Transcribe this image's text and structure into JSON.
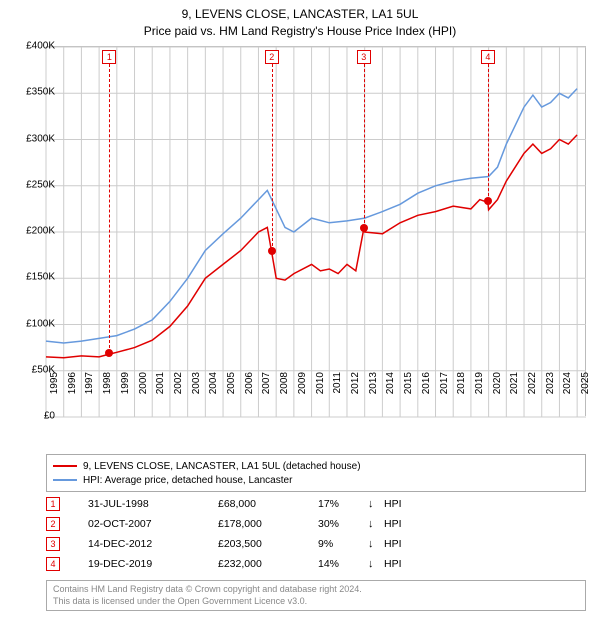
{
  "title_line1": "9, LEVENS CLOSE, LANCASTER, LA1 5UL",
  "title_line2": "Price paid vs. HM Land Registry's House Price Index (HPI)",
  "chart": {
    "type": "line",
    "background_color": "#ffffff",
    "grid_color": "#cccccc",
    "ylim": [
      0,
      400000
    ],
    "ytick_step": 50000,
    "yticks": [
      "£0",
      "£50K",
      "£100K",
      "£150K",
      "£200K",
      "£250K",
      "£300K",
      "£350K",
      "£400K"
    ],
    "xlim": [
      1995,
      2025.5
    ],
    "xticks": [
      1995,
      1996,
      1997,
      1998,
      1999,
      2000,
      2001,
      2002,
      2003,
      2004,
      2005,
      2006,
      2007,
      2008,
      2009,
      2010,
      2011,
      2012,
      2013,
      2014,
      2015,
      2016,
      2017,
      2018,
      2019,
      2020,
      2021,
      2022,
      2023,
      2024,
      2025
    ],
    "series": [
      {
        "name": "property",
        "label": "9, LEVENS CLOSE, LANCASTER, LA1 5UL (detached house)",
        "color": "#e00000",
        "line_width": 1.5,
        "data": [
          [
            1995,
            65000
          ],
          [
            1996,
            64000
          ],
          [
            1997,
            66000
          ],
          [
            1998,
            65000
          ],
          [
            1998.58,
            68000
          ],
          [
            1999,
            70000
          ],
          [
            2000,
            75000
          ],
          [
            2001,
            83000
          ],
          [
            2002,
            98000
          ],
          [
            2003,
            120000
          ],
          [
            2004,
            150000
          ],
          [
            2005,
            165000
          ],
          [
            2006,
            180000
          ],
          [
            2007,
            200000
          ],
          [
            2007.5,
            205000
          ],
          [
            2007.75,
            178000
          ],
          [
            2008,
            150000
          ],
          [
            2008.5,
            148000
          ],
          [
            2009,
            155000
          ],
          [
            2010,
            165000
          ],
          [
            2010.5,
            158000
          ],
          [
            2011,
            160000
          ],
          [
            2011.5,
            155000
          ],
          [
            2012,
            165000
          ],
          [
            2012.5,
            158000
          ],
          [
            2012.95,
            203500
          ],
          [
            2013,
            200000
          ],
          [
            2014,
            198000
          ],
          [
            2015,
            210000
          ],
          [
            2016,
            218000
          ],
          [
            2017,
            222000
          ],
          [
            2018,
            228000
          ],
          [
            2019,
            225000
          ],
          [
            2019.5,
            235000
          ],
          [
            2019.96,
            232000
          ],
          [
            2020,
            224000
          ],
          [
            2020.5,
            235000
          ],
          [
            2021,
            255000
          ],
          [
            2022,
            285000
          ],
          [
            2022.5,
            295000
          ],
          [
            2023,
            285000
          ],
          [
            2023.5,
            290000
          ],
          [
            2024,
            300000
          ],
          [
            2024.5,
            295000
          ],
          [
            2025,
            305000
          ]
        ]
      },
      {
        "name": "hpi",
        "label": "HPI: Average price, detached house, Lancaster",
        "color": "#6699dd",
        "line_width": 1.5,
        "data": [
          [
            1995,
            82000
          ],
          [
            1996,
            80000
          ],
          [
            1997,
            82000
          ],
          [
            1998,
            85000
          ],
          [
            1999,
            88000
          ],
          [
            2000,
            95000
          ],
          [
            2001,
            105000
          ],
          [
            2002,
            125000
          ],
          [
            2003,
            150000
          ],
          [
            2004,
            180000
          ],
          [
            2005,
            198000
          ],
          [
            2006,
            215000
          ],
          [
            2007,
            235000
          ],
          [
            2007.5,
            245000
          ],
          [
            2008,
            225000
          ],
          [
            2008.5,
            205000
          ],
          [
            2009,
            200000
          ],
          [
            2010,
            215000
          ],
          [
            2011,
            210000
          ],
          [
            2012,
            212000
          ],
          [
            2013,
            215000
          ],
          [
            2014,
            222000
          ],
          [
            2015,
            230000
          ],
          [
            2016,
            242000
          ],
          [
            2017,
            250000
          ],
          [
            2018,
            255000
          ],
          [
            2019,
            258000
          ],
          [
            2020,
            260000
          ],
          [
            2020.5,
            270000
          ],
          [
            2021,
            295000
          ],
          [
            2022,
            335000
          ],
          [
            2022.5,
            348000
          ],
          [
            2023,
            335000
          ],
          [
            2023.5,
            340000
          ],
          [
            2024,
            350000
          ],
          [
            2024.5,
            345000
          ],
          [
            2025,
            355000
          ]
        ]
      }
    ],
    "markers": [
      {
        "n": "1",
        "year": 1998.58,
        "value": 68000
      },
      {
        "n": "2",
        "year": 2007.75,
        "value": 178000
      },
      {
        "n": "3",
        "year": 2012.95,
        "value": 203500
      },
      {
        "n": "4",
        "year": 2019.96,
        "value": 232000
      }
    ]
  },
  "legend": {
    "items": [
      {
        "color": "#e00000",
        "label": "9, LEVENS CLOSE, LANCASTER, LA1 5UL (detached house)"
      },
      {
        "color": "#6699dd",
        "label": "HPI: Average price, detached house, Lancaster"
      }
    ]
  },
  "sales": [
    {
      "n": "1",
      "date": "31-JUL-1998",
      "price": "£68,000",
      "pct": "17%",
      "arrow": "↓",
      "hpi": "HPI"
    },
    {
      "n": "2",
      "date": "02-OCT-2007",
      "price": "£178,000",
      "pct": "30%",
      "arrow": "↓",
      "hpi": "HPI"
    },
    {
      "n": "3",
      "date": "14-DEC-2012",
      "price": "£203,500",
      "pct": "9%",
      "arrow": "↓",
      "hpi": "HPI"
    },
    {
      "n": "4",
      "date": "19-DEC-2019",
      "price": "£232,000",
      "pct": "14%",
      "arrow": "↓",
      "hpi": "HPI"
    }
  ],
  "footer_line1": "Contains HM Land Registry data © Crown copyright and database right 2024.",
  "footer_line2": "This data is licensed under the Open Government Licence v3.0.",
  "marker_color": "#e00000"
}
